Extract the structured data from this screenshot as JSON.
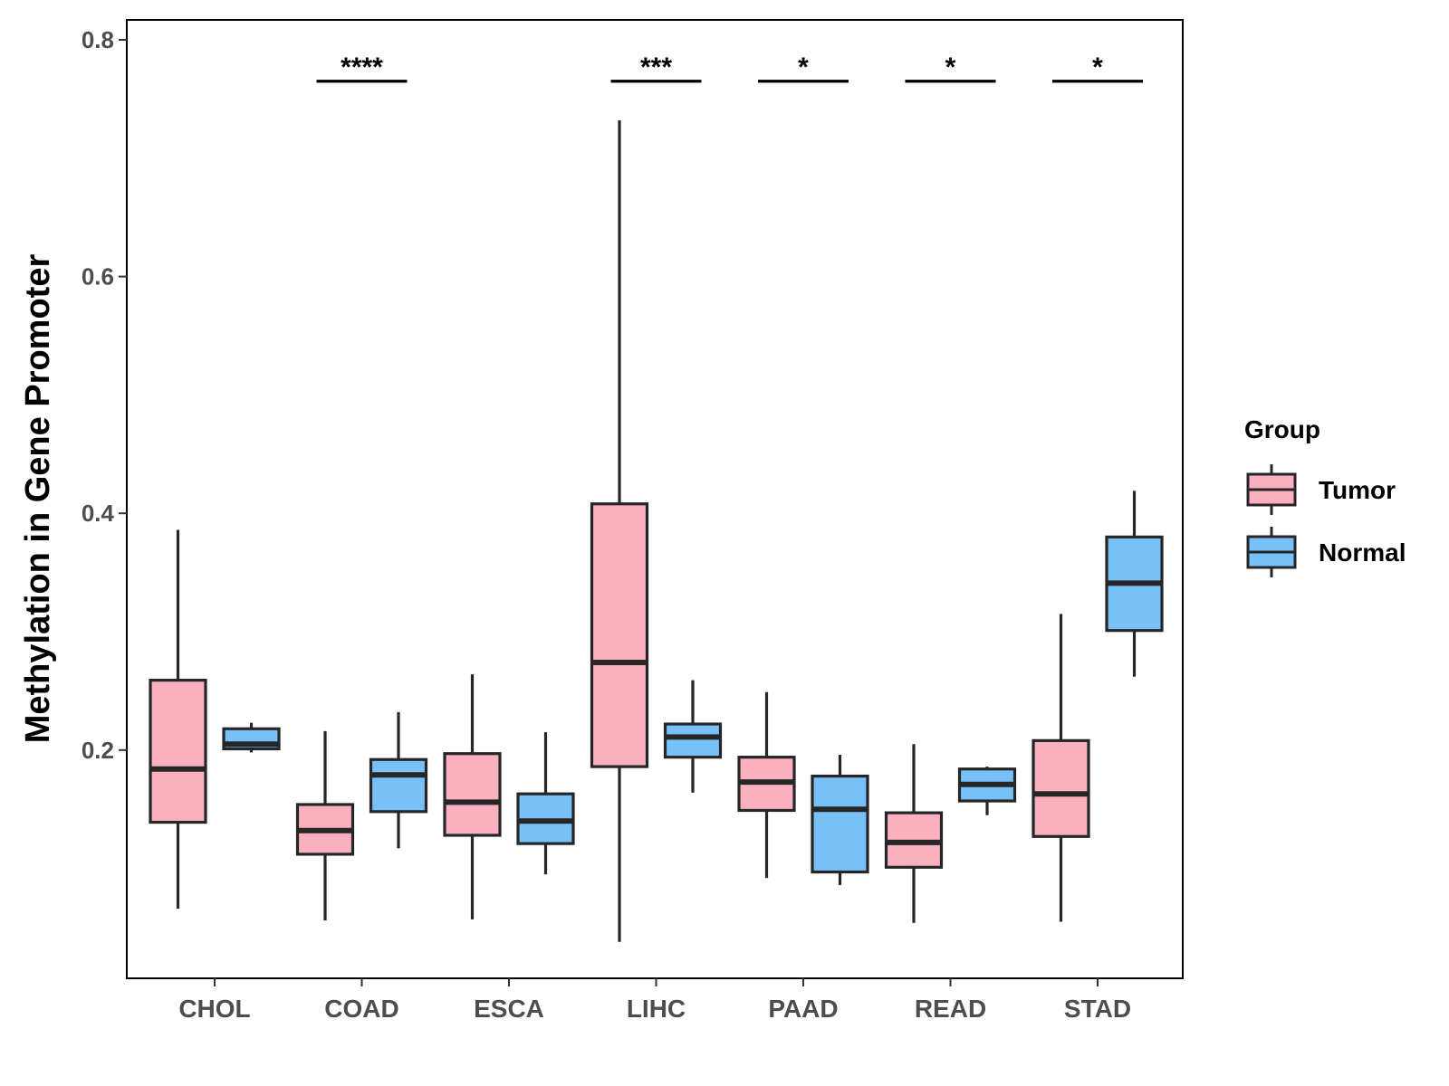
{
  "chart_data": {
    "type": "boxplot",
    "title": "",
    "xlabel": "",
    "ylabel": "Methylation in Gene Promoter",
    "ylim": [
      0.0,
      0.82
    ],
    "yticks": [
      "0.2",
      "0.4",
      "0.6",
      "0.8"
    ],
    "categories": [
      "CHOL",
      "COAD",
      "ESCA",
      "LIHC",
      "PAAD",
      "READ",
      "STAD"
    ],
    "legend": {
      "title": "Group",
      "position": "right",
      "entries": [
        {
          "name": "Tumor",
          "color": "#FBB0C0"
        },
        {
          "name": "Normal",
          "color": "#78C0F8"
        }
      ]
    },
    "series": [
      {
        "name": "Tumor",
        "color": "#FBB0C0",
        "boxes": [
          {
            "category": "CHOL",
            "whisker_low": 0.066,
            "q1": 0.139,
            "median": 0.184,
            "q3": 0.259,
            "whisker_high": 0.386
          },
          {
            "category": "COAD",
            "whisker_low": 0.056,
            "q1": 0.112,
            "median": 0.132,
            "q3": 0.154,
            "whisker_high": 0.216
          },
          {
            "category": "ESCA",
            "whisker_low": 0.057,
            "q1": 0.128,
            "median": 0.156,
            "q3": 0.197,
            "whisker_high": 0.264
          },
          {
            "category": "LIHC",
            "whisker_low": 0.038,
            "q1": 0.186,
            "median": 0.274,
            "q3": 0.408,
            "whisker_high": 0.732
          },
          {
            "category": "PAAD",
            "whisker_low": 0.092,
            "q1": 0.149,
            "median": 0.173,
            "q3": 0.194,
            "whisker_high": 0.249
          },
          {
            "category": "READ",
            "whisker_low": 0.054,
            "q1": 0.101,
            "median": 0.122,
            "q3": 0.147,
            "whisker_high": 0.205
          },
          {
            "category": "STAD",
            "whisker_low": 0.055,
            "q1": 0.127,
            "median": 0.163,
            "q3": 0.208,
            "whisker_high": 0.315
          }
        ]
      },
      {
        "name": "Normal",
        "color": "#78C0F8",
        "boxes": [
          {
            "category": "CHOL",
            "whisker_low": 0.198,
            "q1": 0.201,
            "median": 0.205,
            "q3": 0.218,
            "whisker_high": 0.223
          },
          {
            "category": "COAD",
            "whisker_low": 0.117,
            "q1": 0.148,
            "median": 0.179,
            "q3": 0.192,
            "whisker_high": 0.232
          },
          {
            "category": "ESCA",
            "whisker_low": 0.095,
            "q1": 0.121,
            "median": 0.14,
            "q3": 0.163,
            "whisker_high": 0.215
          },
          {
            "category": "LIHC",
            "whisker_low": 0.164,
            "q1": 0.194,
            "median": 0.211,
            "q3": 0.222,
            "whisker_high": 0.259
          },
          {
            "category": "PAAD",
            "whisker_low": 0.086,
            "q1": 0.097,
            "median": 0.15,
            "q3": 0.178,
            "whisker_high": 0.196
          },
          {
            "category": "READ",
            "whisker_low": 0.145,
            "q1": 0.157,
            "median": 0.171,
            "q3": 0.184,
            "whisker_high": 0.186
          },
          {
            "category": "STAD",
            "whisker_low": 0.262,
            "q1": 0.301,
            "median": 0.341,
            "q3": 0.38,
            "whisker_high": 0.419
          }
        ]
      }
    ],
    "annotations": [
      {
        "category": "COAD",
        "label": "****",
        "y": 0.765
      },
      {
        "category": "LIHC",
        "label": "***",
        "y": 0.765
      },
      {
        "category": "PAAD",
        "label": "*",
        "y": 0.765
      },
      {
        "category": "READ",
        "label": "*",
        "y": 0.765
      },
      {
        "category": "STAD",
        "label": "*",
        "y": 0.765
      }
    ]
  }
}
